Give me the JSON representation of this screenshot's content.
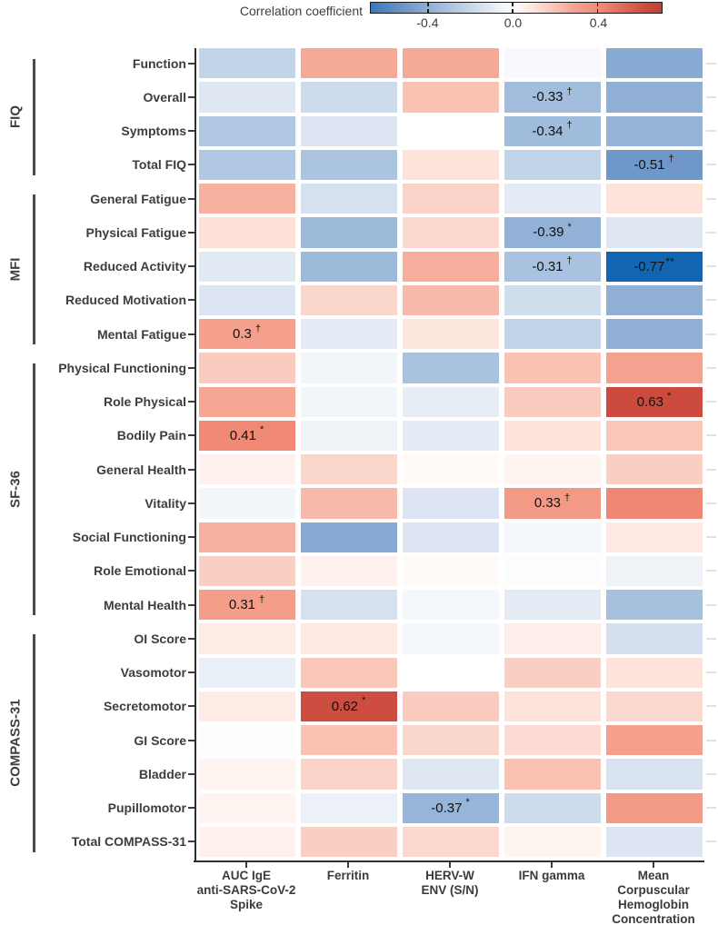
{
  "legend": {
    "title": "Correlation coefficient",
    "ticks": [
      {
        "label": "-0.4",
        "value": -0.4
      },
      {
        "label": "0.0",
        "value": 0.0
      },
      {
        "label": "0.4",
        "value": 0.4
      }
    ]
  },
  "chart_data": {
    "type": "heatmap",
    "colorbar_title": "Correlation coefficient",
    "colorbar_domain": [
      -0.67,
      0.7
    ],
    "colorbar_tick_values": [
      -0.4,
      0.0,
      0.4
    ],
    "color_scale_anchors": [
      [
        -0.77,
        "#1266b1"
      ],
      [
        -0.51,
        "#6f97c8"
      ],
      [
        -0.33,
        "#a3bedd"
      ],
      [
        -0.1,
        "#e4ebf4"
      ],
      [
        0.0,
        "#ffffff"
      ],
      [
        0.1,
        "#fde3da"
      ],
      [
        0.3,
        "#f4a08c"
      ],
      [
        0.41,
        "#f08a76"
      ],
      [
        0.63,
        "#cc4a3e"
      ],
      [
        0.8,
        "#b93226"
      ]
    ],
    "columns": [
      "AUC IgE\nanti-SARS-CoV-2\nSpike",
      "Ferritin",
      "HERV-W\nENV (S/N)",
      "IFN gamma",
      "Mean\nCorpuscular\nHemoglobin\nConcentration"
    ],
    "row_groups": [
      {
        "name": "FIQ",
        "rows": [
          "Function",
          "Overall",
          "Symptoms",
          "Total FIQ"
        ]
      },
      {
        "name": "MFI",
        "rows": [
          "General Fatigue",
          "Physical Fatigue",
          "Reduced Activity",
          "Reduced Motivation",
          "Mental Fatigue"
        ]
      },
      {
        "name": "SF-36",
        "rows": [
          "Physical Functioning",
          "Role Physical",
          "Bodily Pain",
          "General Health",
          "Vitality",
          "Social Functioning",
          "Role Emotional",
          "Mental Health"
        ]
      },
      {
        "name": "COMPASS-31",
        "rows": [
          "OI Score",
          "Vasomotor",
          "Secretomotor",
          "GI Score",
          "Bladder",
          "Pupillomotor",
          "Total COMPASS-31"
        ]
      }
    ],
    "values": [
      [
        -0.22,
        0.27,
        0.27,
        -0.03,
        -0.42
      ],
      [
        -0.12,
        -0.18,
        0.2,
        -0.33,
        -0.4
      ],
      [
        -0.28,
        -0.13,
        0.0,
        -0.34,
        -0.38
      ],
      [
        -0.28,
        -0.3,
        0.1,
        -0.22,
        -0.51
      ],
      [
        0.25,
        -0.15,
        0.15,
        -0.1,
        0.1
      ],
      [
        0.11,
        -0.35,
        0.13,
        -0.39,
        -0.12
      ],
      [
        -0.11,
        -0.35,
        0.26,
        -0.31,
        -0.77
      ],
      [
        -0.13,
        0.14,
        0.22,
        -0.17,
        -0.4
      ],
      [
        0.3,
        -0.1,
        0.09,
        -0.22,
        -0.4
      ],
      [
        0.17,
        -0.05,
        -0.31,
        0.2,
        0.29
      ],
      [
        0.28,
        -0.05,
        -0.09,
        0.17,
        0.63
      ],
      [
        0.41,
        -0.06,
        -0.1,
        0.1,
        0.18
      ],
      [
        0.05,
        0.14,
        0.02,
        0.04,
        0.16
      ],
      [
        -0.05,
        0.22,
        -0.13,
        0.33,
        0.42
      ],
      [
        0.25,
        -0.42,
        -0.13,
        -0.04,
        0.08
      ],
      [
        0.16,
        0.05,
        0.02,
        -0.01,
        -0.06
      ],
      [
        0.31,
        -0.15,
        -0.04,
        -0.1,
        -0.32
      ],
      [
        0.07,
        0.08,
        -0.04,
        0.06,
        -0.16
      ],
      [
        -0.08,
        0.18,
        0.0,
        0.16,
        0.1
      ],
      [
        0.07,
        0.62,
        0.17,
        0.1,
        0.13
      ],
      [
        -0.01,
        0.2,
        0.14,
        0.12,
        0.3
      ],
      [
        0.04,
        0.15,
        -0.12,
        0.2,
        -0.14
      ],
      [
        0.04,
        -0.07,
        -0.37,
        -0.18,
        0.33
      ],
      [
        0.05,
        0.16,
        0.13,
        0.04,
        -0.13
      ]
    ],
    "annotations": [
      {
        "row": 1,
        "col": 3,
        "value": "-0.33",
        "sig": "†"
      },
      {
        "row": 2,
        "col": 3,
        "value": "-0.34",
        "sig": "†"
      },
      {
        "row": 3,
        "col": 4,
        "value": "-0.51",
        "sig": "†"
      },
      {
        "row": 5,
        "col": 3,
        "value": "-0.39",
        "sig": "*"
      },
      {
        "row": 6,
        "col": 3,
        "value": "-0.31",
        "sig": "†"
      },
      {
        "row": 6,
        "col": 4,
        "value": "-0.77",
        "sig": "**"
      },
      {
        "row": 8,
        "col": 0,
        "value": "0.3",
        "sig": "†"
      },
      {
        "row": 10,
        "col": 4,
        "value": "0.63",
        "sig": "*"
      },
      {
        "row": 11,
        "col": 0,
        "value": "0.41",
        "sig": "*"
      },
      {
        "row": 13,
        "col": 3,
        "value": "0.33",
        "sig": "†"
      },
      {
        "row": 16,
        "col": 0,
        "value": "0.31",
        "sig": "†"
      },
      {
        "row": 19,
        "col": 1,
        "value": "0.62",
        "sig": "*"
      },
      {
        "row": 22,
        "col": 2,
        "value": "-0.37",
        "sig": "*"
      }
    ]
  }
}
